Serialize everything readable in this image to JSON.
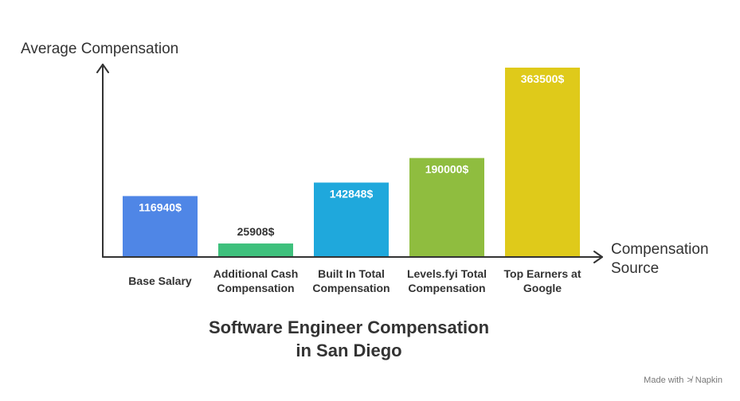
{
  "chart_data": {
    "type": "bar",
    "title_lines": [
      "Software Engineer Compensation",
      "in San Diego"
    ],
    "ylabel": "Average Compensation",
    "xlabel_lines": [
      "Compensation",
      "Source"
    ],
    "ylim": [
      0,
      363500
    ],
    "categories": [
      [
        "Base Salary"
      ],
      [
        "Additional Cash",
        "Compensation"
      ],
      [
        "Built In Total",
        "Compensation"
      ],
      [
        "Levels.fyi Total",
        "Compensation"
      ],
      [
        "Top Earners at",
        "Google"
      ]
    ],
    "values": [
      116940,
      25908,
      142848,
      190000,
      363500
    ],
    "value_labels": [
      "116940$",
      "25908$",
      "142848$",
      "190000$",
      "363500$"
    ],
    "colors": [
      "#4f86e6",
      "#3ec07c",
      "#1fa8dc",
      "#8fbd3f",
      "#dfca1a"
    ]
  },
  "footer": {
    "made_with": "Made with",
    "brand": "Napkin"
  }
}
